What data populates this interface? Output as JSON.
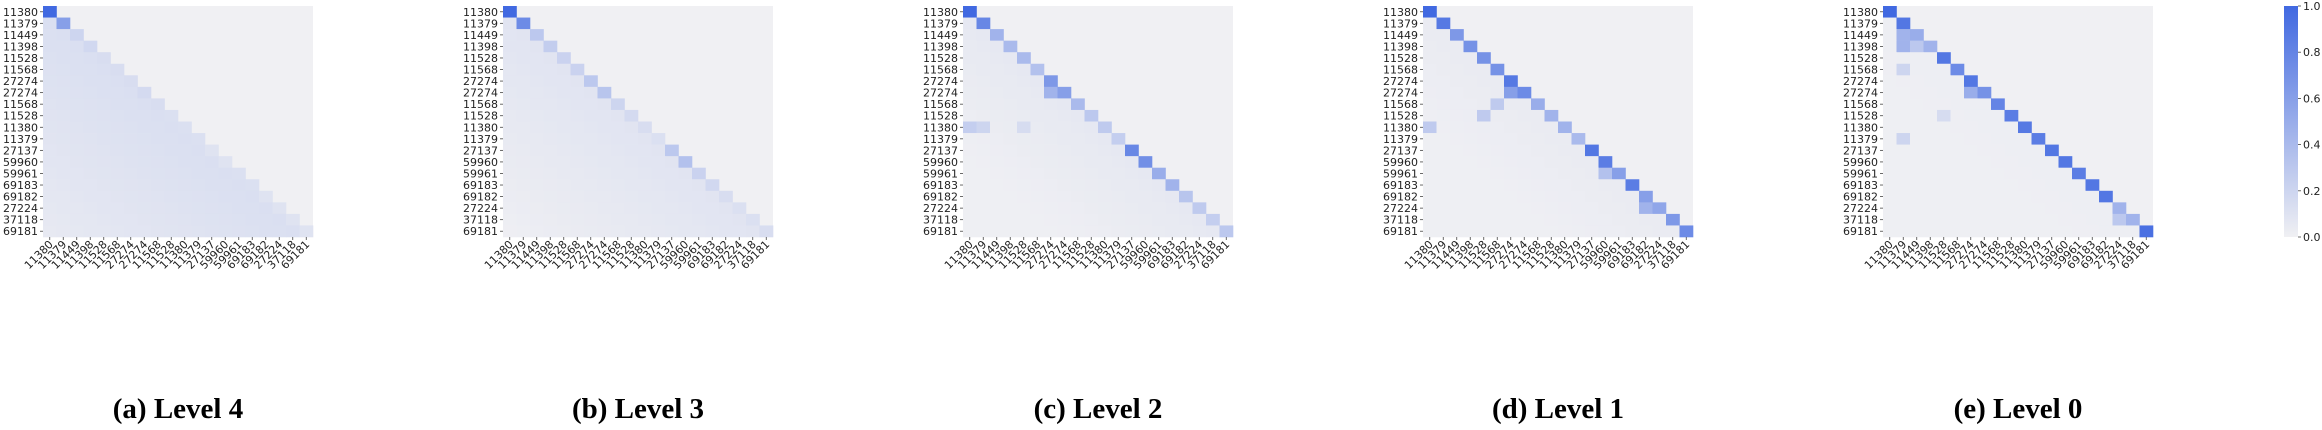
{
  "chart_data": {
    "type": "heatmap",
    "labels": [
      "11380",
      "11379",
      "11449",
      "11398",
      "11528",
      "11568",
      "27274",
      "27274",
      "11568",
      "11528",
      "11380",
      "11379",
      "27137",
      "59960",
      "59961",
      "69183",
      "69182",
      "27224",
      "37118",
      "69181"
    ],
    "colorbar": {
      "min": 0.0,
      "max": 1.0,
      "ticks": [
        "0.0",
        "0.2",
        "0.4",
        "0.6",
        "0.8",
        "1.0"
      ]
    },
    "colors": {
      "high": "#4169e1",
      "low": "#f0f0f3"
    },
    "panels": [
      {
        "caption": "(a) Level 4",
        "diagonal": [
          1.0,
          0.6,
          0.2,
          0.18,
          0.14,
          0.14,
          0.14,
          0.16,
          0.14,
          0.12,
          0.12,
          0.12,
          0.1,
          0.1,
          0.12,
          0.12,
          0.1,
          0.1,
          0.1,
          0.1
        ],
        "off_diagonal_base": 0.13,
        "decay": 0.004,
        "extras": []
      },
      {
        "caption": "(b) Level 3",
        "diagonal": [
          1.0,
          0.75,
          0.3,
          0.26,
          0.22,
          0.22,
          0.3,
          0.32,
          0.2,
          0.16,
          0.14,
          0.12,
          0.3,
          0.35,
          0.22,
          0.18,
          0.14,
          0.12,
          0.12,
          0.14
        ],
        "off_diagonal_base": 0.09,
        "decay": 0.004,
        "extras": []
      },
      {
        "caption": "(c) Level 2",
        "diagonal": [
          1.0,
          0.78,
          0.45,
          0.4,
          0.4,
          0.35,
          0.65,
          0.6,
          0.4,
          0.3,
          0.28,
          0.25,
          0.78,
          0.72,
          0.5,
          0.45,
          0.32,
          0.28,
          0.25,
          0.3
        ],
        "off_diagonal_base": 0.06,
        "decay": 0.004,
        "extras": [
          [
            10,
            0,
            0.25
          ],
          [
            10,
            1,
            0.2
          ],
          [
            10,
            4,
            0.15
          ],
          [
            7,
            6,
            0.45
          ]
        ]
      },
      {
        "caption": "(d) Level 1",
        "diagonal": [
          1.0,
          0.88,
          0.65,
          0.7,
          0.7,
          0.7,
          0.88,
          0.75,
          0.5,
          0.45,
          0.45,
          0.4,
          0.9,
          0.85,
          0.6,
          0.85,
          0.6,
          0.55,
          0.65,
          0.75
        ],
        "off_diagonal_base": 0.04,
        "decay": 0.003,
        "extras": [
          [
            10,
            0,
            0.28
          ],
          [
            9,
            4,
            0.28
          ],
          [
            7,
            6,
            0.6
          ],
          [
            8,
            5,
            0.28
          ],
          [
            14,
            13,
            0.35
          ],
          [
            17,
            16,
            0.45
          ]
        ]
      },
      {
        "caption": "(e) Level 0",
        "diagonal": [
          1.0,
          0.9,
          0.5,
          0.45,
          0.9,
          0.75,
          0.9,
          0.7,
          0.8,
          0.85,
          0.88,
          0.85,
          0.9,
          0.9,
          0.85,
          0.9,
          0.9,
          0.45,
          0.45,
          0.95
        ],
        "off_diagonal_base": 0.02,
        "decay": 0.0015,
        "extras": [
          [
            2,
            1,
            0.45
          ],
          [
            3,
            1,
            0.45
          ],
          [
            3,
            2,
            0.3
          ],
          [
            5,
            1,
            0.2
          ],
          [
            11,
            1,
            0.2
          ],
          [
            9,
            4,
            0.15
          ],
          [
            7,
            6,
            0.5
          ],
          [
            18,
            17,
            0.3
          ]
        ]
      }
    ]
  }
}
